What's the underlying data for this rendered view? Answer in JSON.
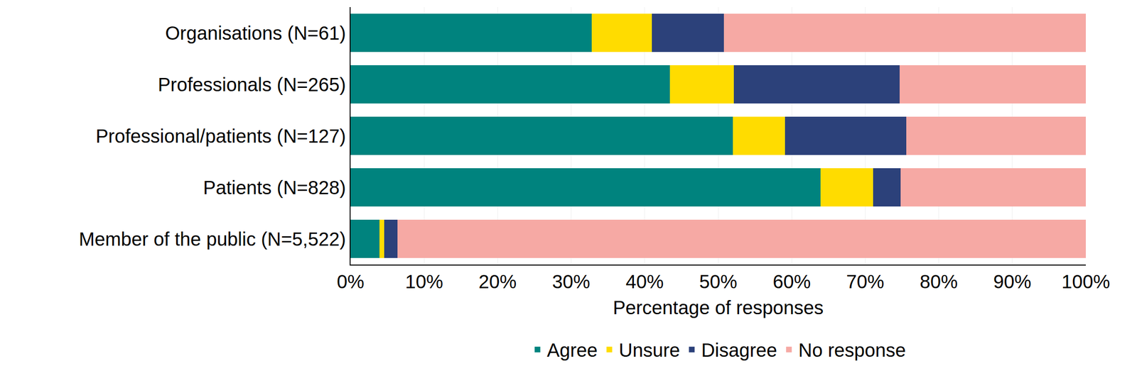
{
  "chart_data": {
    "type": "bar",
    "orientation": "horizontal",
    "stacked": true,
    "grid": true,
    "legend": "bottom",
    "x_label": "Percentage of responses",
    "categories": [
      "Organisations (N=61)",
      "Professionals (N=265)",
      "Professional/patients (N=127)",
      "Patients (N=828)",
      "Member of the public (N=5,522)"
    ],
    "series": [
      {
        "name": "Agree",
        "color": "#00837e",
        "values": [
          32.8,
          43.4,
          52.0,
          63.9,
          3.9
        ]
      },
      {
        "name": "Unsure",
        "color": "#ffdc00",
        "values": [
          8.2,
          8.7,
          7.1,
          7.2,
          0.7
        ]
      },
      {
        "name": "Disagree",
        "color": "#2c417a",
        "values": [
          9.8,
          22.6,
          16.5,
          3.7,
          1.8
        ]
      },
      {
        "name": "No response",
        "color": "#f6a9a4",
        "values": [
          49.2,
          25.3,
          24.4,
          25.2,
          93.6
        ]
      }
    ],
    "xlim": [
      0,
      100
    ],
    "xticks": [
      {
        "value": 0,
        "label": "0%"
      },
      {
        "value": 10,
        "label": "10%"
      },
      {
        "value": 20,
        "label": "20%"
      },
      {
        "value": 30,
        "label": "30%"
      },
      {
        "value": 40,
        "label": "40%"
      },
      {
        "value": 50,
        "label": "50%"
      },
      {
        "value": 60,
        "label": "60%"
      },
      {
        "value": 70,
        "label": "70%"
      },
      {
        "value": 80,
        "label": "80%"
      },
      {
        "value": 90,
        "label": "90%"
      },
      {
        "value": 100,
        "label": "100%"
      }
    ]
  }
}
